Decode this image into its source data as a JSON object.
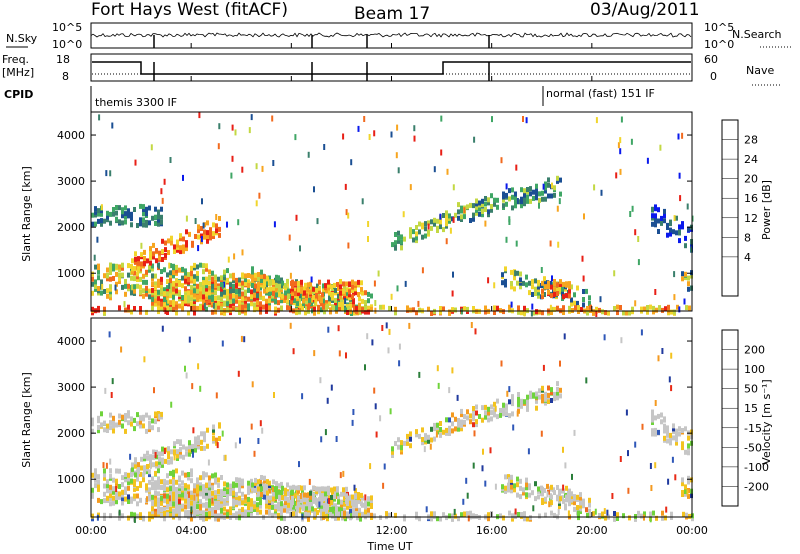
{
  "header": {
    "station": "Fort Hays West (fitACF)",
    "beam": "Beam 17",
    "date": "03/Aug/2011"
  },
  "top_panels": {
    "nsky_label": "N.Sky",
    "nsky_ticks": [
      "10^5",
      "10^0"
    ],
    "nsearch_label": "N.Search",
    "nsearch_ticks": [
      "10^5",
      "10^0"
    ],
    "freq_label": "Freq.",
    "freq_unit": "[MHz]",
    "freq_ticks": [
      "18",
      "8"
    ],
    "nave_label": "Nave",
    "nave_ticks": [
      "60",
      "0"
    ],
    "cpid_label": "CPID",
    "cpid_modes": [
      "themis 3300 IF",
      "normal (fast) 151 IF"
    ]
  },
  "chart_data": [
    {
      "type": "heatmap",
      "name": "power",
      "ylabel": "Slant Range [km]",
      "xlabel": "",
      "y_ticks": [
        "1000",
        "2000",
        "3000",
        "4000"
      ],
      "ylim": [
        180,
        4500
      ],
      "colorbar": {
        "label": "Power [dB]",
        "ticks": [
          "28",
          "24",
          "20",
          "16",
          "12",
          "8",
          "4"
        ],
        "colors": [
          "#e81f16",
          "#f26a1e",
          "#f7a51f",
          "#f1d52c",
          "#c3d843",
          "#3fa665",
          "#3a7f6c",
          "#1b4f93",
          "#0a19ec"
        ]
      }
    },
    {
      "type": "heatmap",
      "name": "velocity",
      "ylabel": "Slant Range [km]",
      "xlabel": "Time UT",
      "y_ticks": [
        "1000",
        "2000",
        "3000",
        "4000"
      ],
      "ylim": [
        180,
        4500
      ],
      "x_ticks": [
        "00:00",
        "04:00",
        "08:00",
        "12:00",
        "16:00",
        "20:00",
        "00:00"
      ],
      "colorbar": {
        "label": "Velocity [m s⁻¹]",
        "ticks": [
          "200",
          "100",
          "50",
          "15",
          "-15",
          "-50",
          "-100",
          "-200"
        ],
        "colors": [
          "#203a9e",
          "#2f57b8",
          "#2a7e3a",
          "#6fd33b",
          "#c6c6c6",
          "#f3c31f",
          "#f49a20",
          "#f06a1e",
          "#e82a16"
        ]
      }
    }
  ]
}
